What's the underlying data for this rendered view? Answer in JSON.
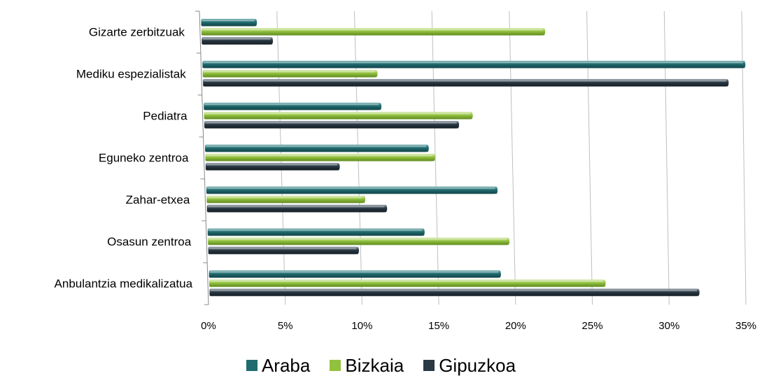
{
  "chart_data": {
    "type": "bar",
    "orientation": "horizontal",
    "categories": [
      "Gizarte zerbitzuak",
      "Mediku espezialistak",
      "Pediatra",
      "Eguneko zentroa",
      "Zahar-etxea",
      "Osasun zentroa",
      "Anbulantzia medikalizatua"
    ],
    "series": [
      {
        "name": "Araba",
        "color": "#1f6b6f",
        "values": [
          3.6,
          35.1,
          11.5,
          14.5,
          18.9,
          14.1,
          19.0
        ]
      },
      {
        "name": "Bizkaia",
        "color": "#92c13e",
        "values": [
          22.2,
          11.3,
          17.4,
          14.9,
          10.3,
          19.6,
          25.8
        ]
      },
      {
        "name": "Gipuzkoa",
        "color": "#2a3944",
        "values": [
          4.6,
          34.0,
          16.5,
          8.7,
          11.7,
          9.8,
          31.9
        ]
      }
    ],
    "xticks": [
      "0%",
      "5%",
      "10%",
      "15%",
      "20%",
      "25%",
      "30%",
      "35%"
    ],
    "xlim": [
      0,
      35
    ],
    "grid": true,
    "legend_position": "bottom"
  }
}
